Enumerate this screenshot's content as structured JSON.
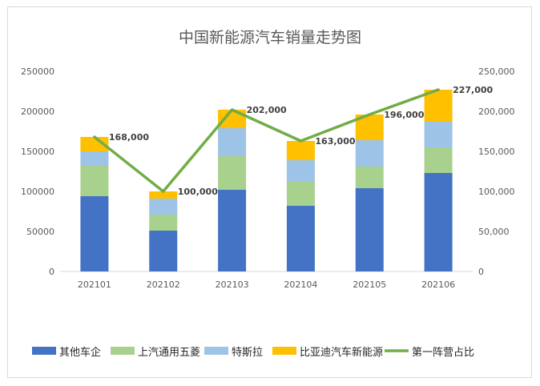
{
  "chart_data": {
    "type": "bar",
    "title": "中国新能源汽车销量走势图",
    "categories": [
      "202101",
      "202102",
      "202103",
      "202104",
      "202105",
      "202106"
    ],
    "stacked": true,
    "series": [
      {
        "name": "其他车企",
        "color": "#4472c4",
        "values": [
          94000,
          51000,
          102000,
          82000,
          104000,
          123000
        ]
      },
      {
        "name": "上汽通用五菱",
        "color": "#a9d18e",
        "values": [
          38000,
          20000,
          42000,
          30000,
          27000,
          32000
        ]
      },
      {
        "name": "特斯拉",
        "color": "#9dc3e6",
        "values": [
          18000,
          20000,
          35000,
          27000,
          33000,
          32000
        ]
      },
      {
        "name": "比亚迪汽车新能源",
        "color": "#ffc000",
        "values": [
          18000,
          9000,
          23000,
          24000,
          32000,
          40000
        ]
      }
    ],
    "line_series": {
      "name": "第一阵营占比",
      "color": "#70ad47",
      "values": [
        168000,
        100000,
        202000,
        163000,
        196000,
        227000
      ]
    },
    "data_labels": [
      "168,000",
      "100,000",
      "202,000",
      "163,000",
      "196,000",
      "227,000"
    ],
    "y_left": {
      "ticks": [
        "0",
        "50000",
        "100000",
        "150000",
        "200000",
        "250000"
      ],
      "ylim": [
        0,
        250000
      ]
    },
    "y_right": {
      "ticks": [
        "0",
        "50,000",
        "100,000",
        "150,000",
        "200,000",
        "250,000"
      ],
      "ylim": [
        0,
        250000
      ]
    },
    "grid": false,
    "legend_position": "bottom"
  }
}
